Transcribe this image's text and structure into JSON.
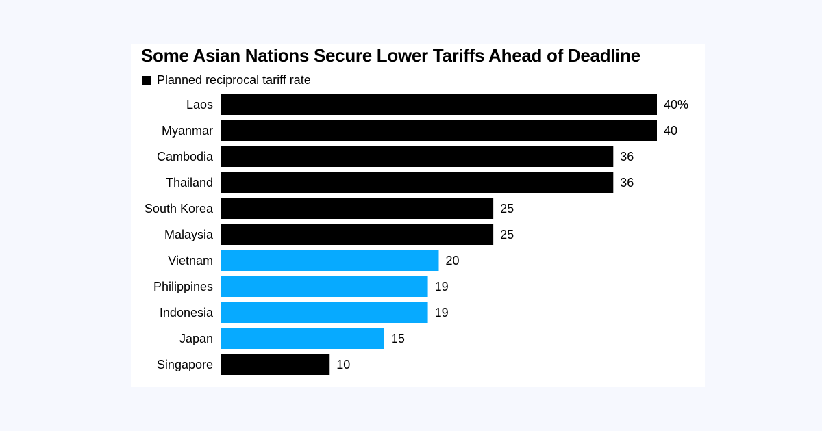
{
  "colors": {
    "background": "#f6f8fe",
    "card": "#ffffff",
    "black_bar": "#000000",
    "blue_bar": "#07aaff",
    "text": "#000000"
  },
  "chart_data": {
    "type": "bar",
    "orientation": "horizontal",
    "title": "Some Asian Nations Secure Lower Tariffs Ahead of Deadline",
    "legend": [
      {
        "label": "Planned reciprocal tariff rate",
        "color": "#000000"
      }
    ],
    "legend_placement": "top-left",
    "categories": [
      "Laos",
      "Myanmar",
      "Cambodia",
      "Thailand",
      "South Korea",
      "Malaysia",
      "Vietnam",
      "Philippines",
      "Indonesia",
      "Japan",
      "Singapore"
    ],
    "values": [
      40,
      40,
      36,
      36,
      25,
      25,
      20,
      19,
      19,
      15,
      10
    ],
    "value_labels": [
      "40%",
      "40",
      "36",
      "36",
      "25",
      "25",
      "20",
      "19",
      "19",
      "15",
      "10"
    ],
    "bar_colors": [
      "#000000",
      "#000000",
      "#000000",
      "#000000",
      "#000000",
      "#000000",
      "#07aaff",
      "#07aaff",
      "#07aaff",
      "#07aaff",
      "#000000"
    ],
    "xlim": [
      0,
      40
    ],
    "grid": false
  }
}
